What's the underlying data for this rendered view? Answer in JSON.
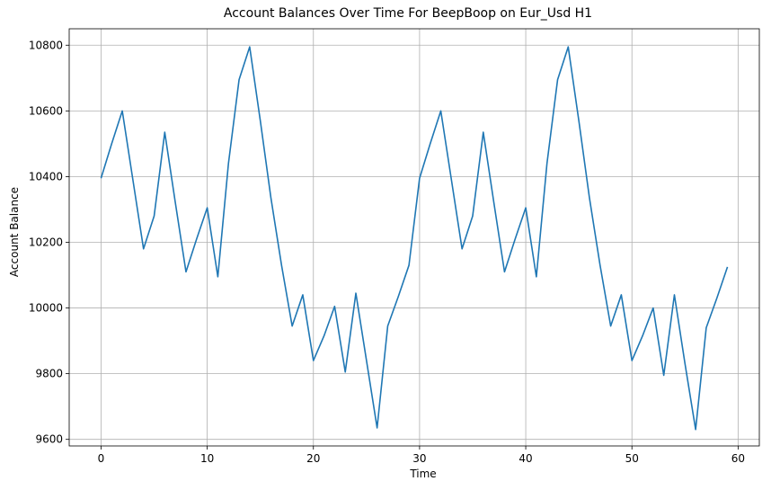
{
  "chart_data": {
    "type": "line",
    "title": "Account Balances Over Time For BeepBoop on Eur_Usd H1",
    "xlabel": "Time",
    "ylabel": "Account Balance",
    "xlim": [
      -3,
      62
    ],
    "ylim": [
      9580,
      10850
    ],
    "xticks": [
      0,
      10,
      20,
      30,
      40,
      50,
      60
    ],
    "yticks": [
      9600,
      9800,
      10000,
      10200,
      10400,
      10600,
      10800
    ],
    "grid": true,
    "line_color": "#1f77b4",
    "x": [
      0,
      1,
      2,
      3,
      4,
      5,
      6,
      7,
      8,
      9,
      10,
      11,
      12,
      13,
      14,
      15,
      16,
      17,
      18,
      19,
      20,
      21,
      22,
      23,
      24,
      25,
      26,
      27,
      28,
      29,
      30,
      31,
      32,
      33,
      34,
      35,
      36,
      37,
      38,
      39,
      40,
      41,
      42,
      43,
      44,
      45,
      46,
      47,
      48,
      49,
      50,
      51,
      52,
      53,
      54,
      55,
      56,
      57,
      58,
      59
    ],
    "y": [
      10395,
      10500,
      10600,
      10390,
      10180,
      10280,
      10535,
      10320,
      10110,
      10210,
      10305,
      10095,
      10440,
      10695,
      10795,
      10570,
      10335,
      10130,
      9945,
      10040,
      9840,
      9915,
      10005,
      9805,
      10045,
      9840,
      9635,
      9945,
      10035,
      10130,
      10395,
      10500,
      10600,
      10390,
      10180,
      10280,
      10535,
      10320,
      10110,
      10210,
      10305,
      10095,
      10440,
      10695,
      10795,
      10570,
      10335,
      10130,
      9945,
      10040,
      9840,
      9915,
      10000,
      9795,
      10040,
      9830,
      9630,
      9940,
      10030,
      10125
    ]
  }
}
